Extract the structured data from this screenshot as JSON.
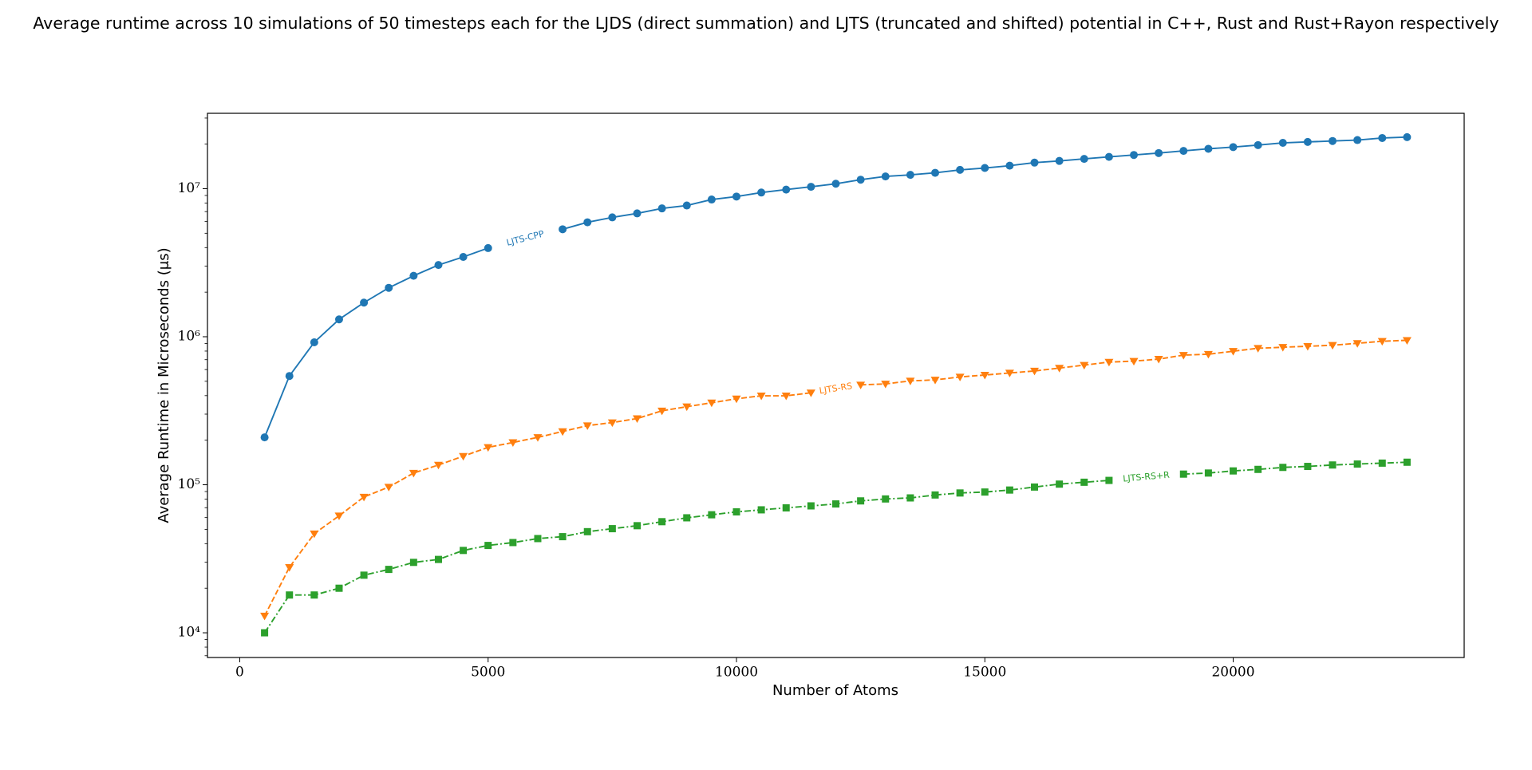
{
  "chart_data": {
    "type": "line",
    "title": "Average runtime across 10 simulations of 50 timesteps each for the LJDS (direct summation) and LJTS (truncated and shifted) potential in C++, Rust and Rust+Rayon respectively",
    "x_label": "Number of Atoms",
    "y_label": "Average Runtime in Microseconds (μs)",
    "y_scale": "log",
    "xlim": [
      -650,
      24650
    ],
    "ylim": [
      6810,
      32300000
    ],
    "xticks": [
      0,
      5000,
      10000,
      15000,
      20000
    ],
    "yticks": [
      {
        "value": 10000,
        "label": "10⁴"
      },
      {
        "value": 100000,
        "label": "10⁵"
      },
      {
        "value": 1000000,
        "label": "10⁶"
      },
      {
        "value": 10000000,
        "label": "10⁷"
      }
    ],
    "x": [
      500,
      1000,
      1500,
      2000,
      2500,
      3000,
      3500,
      4000,
      4500,
      5000,
      5500,
      6000,
      6500,
      7000,
      7500,
      8000,
      8500,
      9000,
      9500,
      10000,
      10500,
      11000,
      11500,
      12000,
      12500,
      13000,
      13500,
      14000,
      14500,
      15000,
      15500,
      16000,
      16500,
      17000,
      17500,
      18000,
      18500,
      19000,
      19500,
      20000,
      20500,
      21000,
      21500,
      22000,
      22500,
      23000,
      23500
    ],
    "series": [
      {
        "name": "LJTS-CPP",
        "color": "#1f77b4",
        "marker": "circle",
        "linestyle": "solid",
        "values": [
          209000,
          543000,
          917000,
          1310000,
          1700000,
          2140000,
          2580000,
          3050000,
          3460000,
          3970000,
          null,
          null,
          5320000,
          5930000,
          6400000,
          6810000,
          7360000,
          7700000,
          8450000,
          8850000,
          9420000,
          9860000,
          10300000,
          10800000,
          11500000,
          12100000,
          12400000,
          12800000,
          13400000,
          13800000,
          14300000,
          15000000,
          15400000,
          15900000,
          16400000,
          16900000,
          17400000,
          18000000,
          18600000,
          19100000,
          19700000,
          20400000,
          20700000,
          21000000,
          21300000,
          22000000,
          22300000
        ]
      },
      {
        "name": "LJTS-RS",
        "color": "#ff7f0e",
        "marker": "triangle-down",
        "linestyle": "dashed",
        "values": [
          13000,
          27700,
          46700,
          61700,
          82700,
          96500,
          120000,
          136000,
          156000,
          179000,
          193000,
          209000,
          229000,
          251000,
          263000,
          280000,
          316000,
          337000,
          358000,
          381000,
          399000,
          399000,
          418000,
          null,
          473000,
          480000,
          503000,
          511000,
          535000,
          551000,
          569000,
          587000,
          614000,
          643000,
          674000,
          684000,
          706000,
          751000,
          762000,
          798000,
          836000,
          849000,
          862000,
          876000,
          903000,
          932000,
          946000
        ]
      },
      {
        "name": "LJTS-RS+R",
        "color": "#2ca02c",
        "marker": "square",
        "linestyle": "dashdot",
        "values": [
          10000,
          18000,
          18000,
          20000,
          24500,
          26800,
          29900,
          31300,
          36000,
          38900,
          40700,
          43300,
          44600,
          48200,
          50500,
          52900,
          56300,
          59800,
          62700,
          65600,
          67700,
          69800,
          72000,
          74200,
          77800,
          80200,
          81500,
          85300,
          88000,
          89300,
          92100,
          96500,
          101000,
          104000,
          107000,
          null,
          null,
          118000,
          120000,
          124000,
          127000,
          131000,
          133000,
          136000,
          138000,
          140000,
          142000
        ]
      }
    ]
  }
}
